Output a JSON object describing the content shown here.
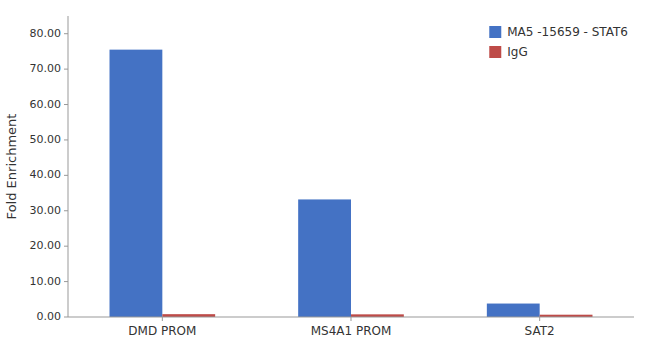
{
  "chart_data": {
    "type": "bar",
    "y_label": "Fold Enrichment",
    "categories": [
      "DMD PROM",
      "MS4A1 PROM",
      "SAT2"
    ],
    "series": [
      {
        "name": "MA5 -15659 - STAT6",
        "color": "#4472C4",
        "values": [
          75.5,
          33.2,
          3.8
        ]
      },
      {
        "name": "IgG",
        "color": "#BE4B48",
        "values": [
          0.8,
          0.75,
          0.65
        ]
      }
    ],
    "ylim": [
      0,
      85
    ],
    "yticks": [
      {
        "value": 0.0,
        "label": "0.00"
      },
      {
        "value": 10.0,
        "label": "10.00"
      },
      {
        "value": 20.0,
        "label": "20.00"
      },
      {
        "value": 30.0,
        "label": "30.00"
      },
      {
        "value": 40.0,
        "label": "40.00"
      },
      {
        "value": 50.0,
        "label": "50.00"
      },
      {
        "value": 60.0,
        "label": "60.00"
      },
      {
        "value": 70.0,
        "label": "70.00"
      },
      {
        "value": 80.0,
        "label": "80.00"
      }
    ],
    "grid": false,
    "legend": "upper-right"
  }
}
